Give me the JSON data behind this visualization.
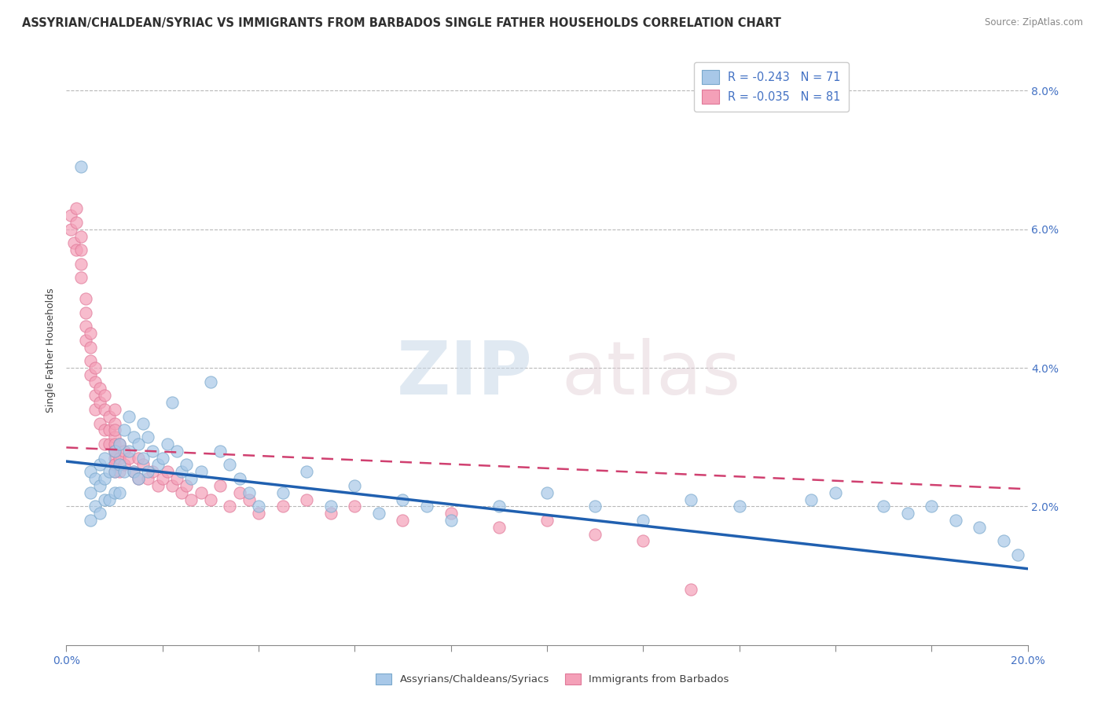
{
  "title": "ASSYRIAN/CHALDEAN/SYRIAC VS IMMIGRANTS FROM BARBADOS SINGLE FATHER HOUSEHOLDS CORRELATION CHART",
  "source": "Source: ZipAtlas.com",
  "ylabel": "Single Father Households",
  "blue_label": "Assyrians/Chaldeans/Syriacs",
  "pink_label": "Immigrants from Barbados",
  "blue_R": -0.243,
  "blue_N": 71,
  "pink_R": -0.035,
  "pink_N": 81,
  "blue_color": "#a8c8e8",
  "pink_color": "#f4a0b8",
  "blue_edge_color": "#7aa8cc",
  "pink_edge_color": "#e07898",
  "blue_line_color": "#2060b0",
  "pink_line_color": "#d04070",
  "xmin": 0.0,
  "xmax": 20.0,
  "ymin": 0.0,
  "ymax": 8.5,
  "blue_line_x0": 0.0,
  "blue_line_y0": 2.65,
  "blue_line_x1": 20.0,
  "blue_line_y1": 1.1,
  "pink_line_x0": 0.0,
  "pink_line_y0": 2.85,
  "pink_line_x1": 20.0,
  "pink_line_y1": 2.25,
  "blue_x": [
    0.3,
    0.5,
    0.5,
    0.5,
    0.6,
    0.6,
    0.7,
    0.7,
    0.7,
    0.8,
    0.8,
    0.8,
    0.9,
    0.9,
    1.0,
    1.0,
    1.0,
    1.1,
    1.1,
    1.1,
    1.2,
    1.2,
    1.3,
    1.3,
    1.4,
    1.4,
    1.5,
    1.5,
    1.6,
    1.6,
    1.7,
    1.7,
    1.8,
    1.9,
    2.0,
    2.1,
    2.2,
    2.3,
    2.4,
    2.5,
    2.6,
    2.8,
    3.0,
    3.2,
    3.4,
    3.6,
    3.8,
    4.0,
    4.5,
    5.0,
    5.5,
    6.0,
    6.5,
    7.0,
    7.5,
    8.0,
    9.0,
    10.0,
    11.0,
    12.0,
    13.0,
    14.0,
    15.5,
    16.0,
    17.0,
    17.5,
    18.0,
    18.5,
    19.0,
    19.5,
    19.8
  ],
  "blue_y": [
    6.9,
    2.5,
    2.2,
    1.8,
    2.4,
    2.0,
    2.6,
    2.3,
    1.9,
    2.7,
    2.4,
    2.1,
    2.5,
    2.1,
    2.8,
    2.5,
    2.2,
    2.9,
    2.6,
    2.2,
    3.1,
    2.5,
    3.3,
    2.8,
    3.0,
    2.5,
    2.9,
    2.4,
    3.2,
    2.7,
    3.0,
    2.5,
    2.8,
    2.6,
    2.7,
    2.9,
    3.5,
    2.8,
    2.5,
    2.6,
    2.4,
    2.5,
    3.8,
    2.8,
    2.6,
    2.4,
    2.2,
    2.0,
    2.2,
    2.5,
    2.0,
    2.3,
    1.9,
    2.1,
    2.0,
    1.8,
    2.0,
    2.2,
    2.0,
    1.8,
    2.1,
    2.0,
    2.1,
    2.2,
    2.0,
    1.9,
    2.0,
    1.8,
    1.7,
    1.5,
    1.3
  ],
  "pink_x": [
    0.1,
    0.1,
    0.15,
    0.2,
    0.2,
    0.2,
    0.3,
    0.3,
    0.3,
    0.3,
    0.4,
    0.4,
    0.4,
    0.4,
    0.5,
    0.5,
    0.5,
    0.5,
    0.6,
    0.6,
    0.6,
    0.6,
    0.7,
    0.7,
    0.7,
    0.8,
    0.8,
    0.8,
    0.8,
    0.9,
    0.9,
    0.9,
    1.0,
    1.0,
    1.0,
    1.0,
    1.0,
    1.0,
    1.0,
    1.0,
    1.0,
    1.0,
    1.0,
    1.1,
    1.1,
    1.1,
    1.2,
    1.2,
    1.3,
    1.4,
    1.5,
    1.5,
    1.6,
    1.7,
    1.8,
    1.9,
    2.0,
    2.1,
    2.2,
    2.3,
    2.4,
    2.5,
    2.6,
    2.8,
    3.0,
    3.2,
    3.4,
    3.6,
    3.8,
    4.0,
    4.5,
    5.0,
    5.5,
    6.0,
    7.0,
    8.0,
    9.0,
    10.0,
    11.0,
    12.0,
    13.0
  ],
  "pink_y": [
    6.2,
    6.0,
    5.8,
    6.3,
    6.1,
    5.7,
    5.9,
    5.7,
    5.5,
    5.3,
    5.0,
    4.8,
    4.6,
    4.4,
    4.5,
    4.3,
    4.1,
    3.9,
    4.0,
    3.8,
    3.6,
    3.4,
    3.7,
    3.5,
    3.2,
    3.6,
    3.4,
    3.1,
    2.9,
    3.3,
    3.1,
    2.9,
    3.4,
    3.2,
    3.0,
    2.8,
    2.6,
    2.9,
    2.7,
    2.5,
    3.1,
    2.8,
    2.6,
    2.9,
    2.7,
    2.5,
    2.8,
    2.6,
    2.7,
    2.5,
    2.7,
    2.4,
    2.6,
    2.4,
    2.5,
    2.3,
    2.4,
    2.5,
    2.3,
    2.4,
    2.2,
    2.3,
    2.1,
    2.2,
    2.1,
    2.3,
    2.0,
    2.2,
    2.1,
    1.9,
    2.0,
    2.1,
    1.9,
    2.0,
    1.8,
    1.9,
    1.7,
    1.8,
    1.6,
    1.5,
    0.8
  ]
}
